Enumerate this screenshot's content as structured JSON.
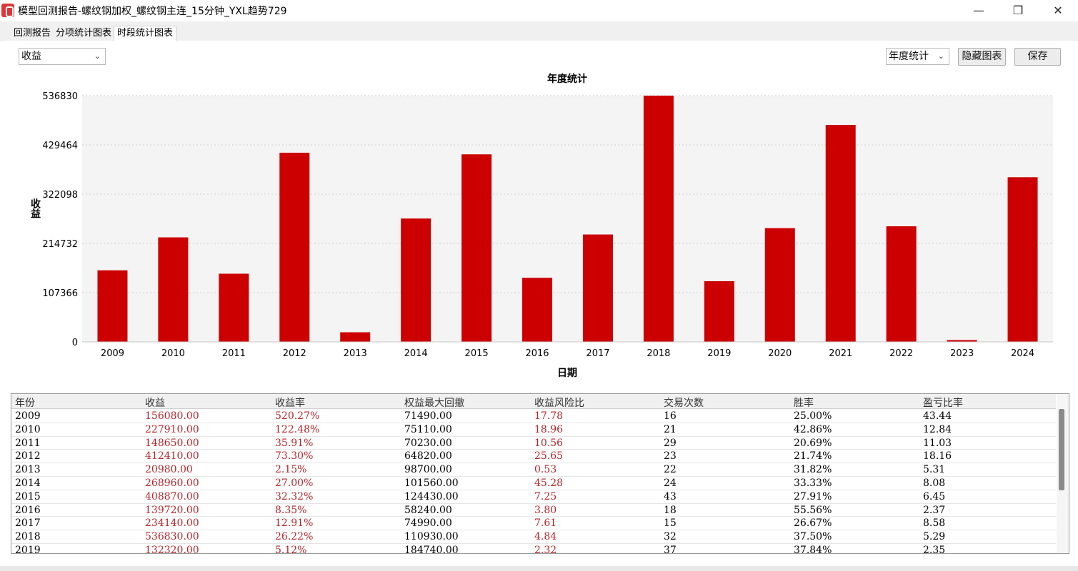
{
  "window": {
    "title": "模型回测报告-螺纹钢加权_螺纹钢主连_15分钟_YXL趋势729",
    "minimize_glyph": "—",
    "restore_glyph": "❐",
    "close_glyph": "✕"
  },
  "tabs": [
    {
      "label": "回测报告",
      "active": false
    },
    {
      "label": "分项统计图表",
      "active": false
    },
    {
      "label": "时段统计图表",
      "active": true
    }
  ],
  "toolbar": {
    "metric_select": "收益",
    "period_select": "年度统计",
    "hide_chart_label": "隐藏图表",
    "save_label": "保存"
  },
  "chart_data": {
    "type": "bar",
    "title": "年度统计",
    "xlabel": "日期",
    "ylabel": "收益",
    "ylim": [
      0,
      536830
    ],
    "yticks": [
      "0",
      "107366",
      "214732",
      "322098",
      "429464",
      "536830"
    ],
    "bar_color": "#cc0000",
    "grid": true,
    "categories": [
      "2009",
      "2010",
      "2011",
      "2012",
      "2013",
      "2014",
      "2015",
      "2016",
      "2017",
      "2018",
      "2019",
      "2020",
      "2021",
      "2022",
      "2023",
      "2024"
    ],
    "values": [
      156080,
      227910,
      148650,
      412410,
      20980,
      268960,
      408870,
      139720,
      234140,
      536830,
      132320,
      248000,
      473000,
      252000,
      4000,
      359000
    ]
  },
  "table": {
    "columns": [
      "年份",
      "收益",
      "收益率",
      "权益最大回撤",
      "收益风险比",
      "交易次数",
      "胜率",
      "盈亏比率"
    ],
    "red_columns": [
      1,
      2,
      4
    ],
    "rows": [
      [
        "2009",
        "156080.00",
        "520.27%",
        "71490.00",
        "17.78",
        "16",
        "25.00%",
        "43.44"
      ],
      [
        "2010",
        "227910.00",
        "122.48%",
        "75110.00",
        "18.96",
        "21",
        "42.86%",
        "12.84"
      ],
      [
        "2011",
        "148650.00",
        "35.91%",
        "70230.00",
        "10.56",
        "29",
        "20.69%",
        "11.03"
      ],
      [
        "2012",
        "412410.00",
        "73.30%",
        "64820.00",
        "25.65",
        "23",
        "21.74%",
        "18.16"
      ],
      [
        "2013",
        "20980.00",
        "2.15%",
        "98700.00",
        "0.53",
        "22",
        "31.82%",
        "5.31"
      ],
      [
        "2014",
        "268960.00",
        "27.00%",
        "101560.00",
        "45.28",
        "24",
        "33.33%",
        "8.08"
      ],
      [
        "2015",
        "408870.00",
        "32.32%",
        "124430.00",
        "7.25",
        "43",
        "27.91%",
        "6.45"
      ],
      [
        "2016",
        "139720.00",
        "8.35%",
        "58240.00",
        "3.80",
        "18",
        "55.56%",
        "2.37"
      ],
      [
        "2017",
        "234140.00",
        "12.91%",
        "74990.00",
        "7.61",
        "15",
        "26.67%",
        "8.58"
      ],
      [
        "2018",
        "536830.00",
        "26.22%",
        "110930.00",
        "4.84",
        "32",
        "37.50%",
        "5.29"
      ],
      [
        "2019",
        "132320.00",
        "5.12%",
        "184740.00",
        "2.32",
        "37",
        "37.84%",
        "2.35"
      ]
    ]
  }
}
